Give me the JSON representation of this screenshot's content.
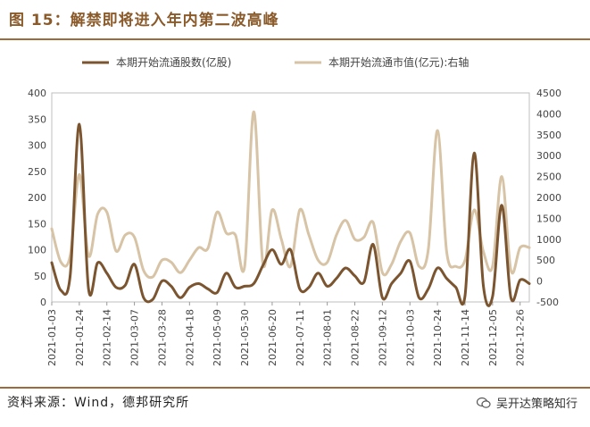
{
  "header": {
    "title": "图 15：解禁即将进入年内第二波高峰"
  },
  "footer": {
    "source": "资料来源：Wind，德邦研究所",
    "watermark": "吴开达策略知行"
  },
  "colors": {
    "shares": "#7b5530",
    "value": "#d7c3a5",
    "accent": "#8a5a2a"
  },
  "chart_data": {
    "type": "line",
    "x": [
      "2021-01-03",
      "2021-01-10",
      "2021-01-17",
      "2021-01-24",
      "2021-01-31",
      "2021-02-07",
      "2021-02-14",
      "2021-02-21",
      "2021-02-28",
      "2021-03-07",
      "2021-03-14",
      "2021-03-21",
      "2021-03-28",
      "2021-04-04",
      "2021-04-11",
      "2021-04-18",
      "2021-04-25",
      "2021-05-02",
      "2021-05-09",
      "2021-05-16",
      "2021-05-23",
      "2021-05-30",
      "2021-06-06",
      "2021-06-13",
      "2021-06-20",
      "2021-06-27",
      "2021-07-04",
      "2021-07-11",
      "2021-07-18",
      "2021-07-25",
      "2021-08-01",
      "2021-08-08",
      "2021-08-15",
      "2021-08-22",
      "2021-08-29",
      "2021-09-05",
      "2021-09-12",
      "2021-09-19",
      "2021-09-26",
      "2021-10-03",
      "2021-10-10",
      "2021-10-17",
      "2021-10-24",
      "2021-10-31",
      "2021-11-07",
      "2021-11-14",
      "2021-11-21",
      "2021-11-28",
      "2021-12-05",
      "2021-12-12",
      "2021-12-19",
      "2021-12-26",
      "2022-01-02"
    ],
    "xticks": [
      "2021-01-03",
      "2021-01-24",
      "2021-02-14",
      "2021-03-07",
      "2021-03-28",
      "2021-04-18",
      "2021-05-09",
      "2021-05-30",
      "2021-06-20",
      "2021-07-11",
      "2021-08-01",
      "2021-08-22",
      "2021-09-12",
      "2021-10-03",
      "2021-10-24",
      "2021-11-14",
      "2021-12-05",
      "2021-12-26"
    ],
    "series": [
      {
        "name": "本期开始流通股数(亿股)",
        "axis": "left",
        "values": [
          75,
          22,
          50,
          340,
          25,
          75,
          55,
          28,
          32,
          72,
          8,
          5,
          40,
          30,
          8,
          28,
          35,
          25,
          18,
          55,
          28,
          30,
          35,
          70,
          100,
          72,
          100,
          25,
          28,
          55,
          30,
          45,
          65,
          50,
          38,
          110,
          8,
          35,
          55,
          78,
          8,
          25,
          65,
          45,
          28,
          12,
          285,
          30,
          10,
          185,
          8,
          42,
          35
        ]
      },
      {
        "name": "本期开始流通市值(亿元):右轴",
        "axis": "right",
        "values": [
          1250,
          450,
          600,
          2550,
          600,
          1600,
          1650,
          720,
          1100,
          1050,
          250,
          100,
          500,
          450,
          200,
          500,
          800,
          780,
          1650,
          1150,
          1100,
          350,
          4050,
          400,
          1700,
          1000,
          350,
          1700,
          1100,
          500,
          450,
          1100,
          1450,
          1000,
          1050,
          1400,
          200,
          400,
          950,
          1150,
          350,
          750,
          3600,
          700,
          350,
          500,
          1700,
          700,
          350,
          2500,
          250,
          800,
          800
        ]
      }
    ],
    "yleft": {
      "ticks": [
        0,
        50,
        100,
        150,
        200,
        250,
        300,
        350,
        400
      ],
      "lim": [
        0,
        400
      ]
    },
    "yright": {
      "ticks": [
        -500,
        0,
        500,
        1000,
        1500,
        2000,
        2500,
        3000,
        3500,
        4000,
        4500
      ],
      "lim": [
        -500,
        4500
      ]
    },
    "grid": false,
    "legend": "top"
  }
}
